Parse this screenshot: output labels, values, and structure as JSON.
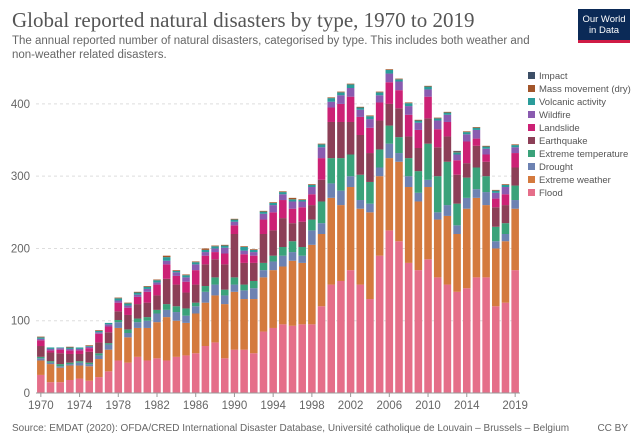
{
  "header": {
    "title": "Global reported natural disasters by type, 1970 to 2019",
    "subtitle": "The annual reported number of natural disasters, categorised by type. This includes both weather and non-weather related disasters."
  },
  "logo": {
    "line1": "Our World",
    "line2": "in Data"
  },
  "footer": {
    "source": "Source: EMDAT (2020): OFDA/CRED International Disaster Database, Université catholique de Louvain – Brussels – Belgium",
    "license": "CC BY"
  },
  "chart_data": {
    "type": "bar",
    "stacked": true,
    "title": "Global reported natural disasters by type, 1970 to 2019",
    "xlabel": "",
    "ylabel": "",
    "ylim": [
      0,
      440
    ],
    "yticks": [
      0,
      100,
      200,
      300,
      400
    ],
    "xticks": [
      1970,
      1974,
      1978,
      1982,
      1986,
      1990,
      1994,
      1998,
      2002,
      2006,
      2010,
      2014,
      2019
    ],
    "grid": true,
    "legend_position": "right",
    "years": [
      1970,
      1971,
      1972,
      1973,
      1974,
      1975,
      1976,
      1977,
      1978,
      1979,
      1980,
      1981,
      1982,
      1983,
      1984,
      1985,
      1986,
      1987,
      1988,
      1989,
      1990,
      1991,
      1992,
      1993,
      1994,
      1995,
      1996,
      1997,
      1998,
      1999,
      2000,
      2001,
      2002,
      2003,
      2004,
      2005,
      2006,
      2007,
      2008,
      2009,
      2010,
      2011,
      2012,
      2013,
      2014,
      2015,
      2016,
      2017,
      2018,
      2019
    ],
    "series": [
      {
        "name": "Flood",
        "color": "#e56e89",
        "values": [
          25,
          15,
          15,
          18,
          20,
          17,
          22,
          30,
          45,
          42,
          50,
          45,
          48,
          45,
          50,
          52,
          55,
          65,
          70,
          48,
          60,
          60,
          55,
          85,
          90,
          95,
          93,
          95,
          95,
          120,
          150,
          155,
          170,
          150,
          130,
          190,
          225,
          210,
          180,
          170,
          185,
          160,
          150,
          140,
          145,
          160,
          160,
          120,
          125,
          170
        ]
      },
      {
        "name": "Extreme weather",
        "color": "#d47a3e",
        "values": [
          20,
          25,
          20,
          20,
          18,
          20,
          25,
          30,
          45,
          35,
          40,
          45,
          50,
          60,
          50,
          45,
          55,
          60,
          65,
          75,
          80,
          70,
          75,
          75,
          80,
          80,
          90,
          85,
          110,
          100,
          120,
          105,
          115,
          105,
          120,
          110,
          100,
          110,
          105,
          95,
          100,
          80,
          95,
          80,
          110,
          110,
          100,
          80,
          85,
          85
        ]
      },
      {
        "name": "Drought",
        "color": "#6d82b2",
        "values": [
          3,
          2,
          2,
          2,
          4,
          3,
          5,
          7,
          8,
          6,
          8,
          10,
          12,
          10,
          12,
          10,
          10,
          15,
          15,
          12,
          10,
          12,
          15,
          10,
          12,
          15,
          12,
          10,
          20,
          15,
          20,
          20,
          15,
          12,
          12,
          12,
          20,
          12,
          15,
          12,
          10,
          10,
          15,
          12,
          15,
          12,
          18,
          10,
          10,
          12
        ]
      },
      {
        "name": "Extreme temperature",
        "color": "#3aa27a",
        "values": [
          2,
          2,
          3,
          2,
          2,
          2,
          3,
          2,
          3,
          5,
          5,
          5,
          5,
          8,
          8,
          10,
          5,
          8,
          10,
          8,
          10,
          8,
          10,
          10,
          8,
          12,
          15,
          12,
          15,
          30,
          35,
          45,
          30,
          35,
          30,
          25,
          25,
          22,
          25,
          30,
          50,
          50,
          60,
          30,
          28,
          30,
          22,
          20,
          15,
          20
        ]
      },
      {
        "name": "Earthquake",
        "color": "#8c3f57",
        "values": [
          15,
          12,
          15,
          12,
          10,
          15,
          15,
          15,
          12,
          20,
          20,
          20,
          20,
          35,
          30,
          22,
          25,
          30,
          25,
          35,
          60,
          30,
          25,
          40,
          35,
          40,
          25,
          35,
          20,
          30,
          50,
          50,
          45,
          55,
          40,
          40,
          30,
          40,
          30,
          32,
          35,
          40,
          35,
          40,
          20,
          30,
          20,
          27,
          25,
          25
        ]
      },
      {
        "name": "Landslide",
        "color": "#cc2175",
        "values": [
          8,
          3,
          5,
          5,
          5,
          5,
          12,
          8,
          12,
          10,
          10,
          15,
          15,
          20,
          12,
          15,
          20,
          12,
          10,
          15,
          12,
          12,
          10,
          20,
          25,
          25,
          20,
          20,
          15,
          30,
          20,
          25,
          35,
          25,
          35,
          25,
          30,
          25,
          30,
          25,
          30,
          25,
          20,
          20,
          30,
          10,
          10,
          12,
          15,
          20
        ]
      },
      {
        "name": "Wildfire",
        "color": "#8a5bb0",
        "values": [
          2,
          2,
          2,
          2,
          2,
          2,
          2,
          3,
          3,
          3,
          3,
          4,
          3,
          5,
          5,
          6,
          8,
          5,
          5,
          8,
          5,
          5,
          5,
          8,
          10,
          8,
          10,
          8,
          10,
          15,
          8,
          12,
          12,
          10,
          12,
          10,
          12,
          12,
          12,
          10,
          10,
          12,
          10,
          8,
          10,
          12,
          8,
          8,
          10,
          8
        ]
      },
      {
        "name": "Volcanic activity",
        "color": "#2a9c9a",
        "values": [
          2,
          2,
          1,
          2,
          2,
          1,
          2,
          2,
          3,
          3,
          3,
          3,
          3,
          5,
          2,
          3,
          3,
          3,
          3,
          3,
          3,
          5,
          3,
          3,
          3,
          3,
          3,
          2,
          3,
          4,
          5,
          4,
          5,
          3,
          4,
          4,
          5,
          3,
          4,
          3,
          4,
          3,
          3,
          3,
          3,
          3,
          3,
          3,
          3,
          3
        ]
      },
      {
        "name": "Mass movement (dry)",
        "color": "#a2552a",
        "values": [
          1,
          0,
          0,
          1,
          0,
          1,
          1,
          0,
          1,
          1,
          1,
          1,
          1,
          2,
          1,
          1,
          1,
          2,
          1,
          1,
          1,
          1,
          1,
          1,
          1,
          1,
          2,
          1,
          1,
          1,
          1,
          1,
          1,
          1,
          1,
          1,
          1,
          1,
          1,
          1,
          1,
          1,
          1,
          1,
          1,
          1,
          1,
          1,
          1,
          1
        ]
      },
      {
        "name": "Impact",
        "color": "#3c4e66",
        "values": [
          0,
          0,
          0,
          0,
          0,
          0,
          0,
          0,
          0,
          0,
          0,
          0,
          0,
          0,
          0,
          0,
          0,
          0,
          0,
          0,
          0,
          0,
          0,
          0,
          0,
          0,
          0,
          0,
          0,
          0,
          0,
          0,
          0,
          0,
          0,
          0,
          0,
          0,
          0,
          0,
          0,
          0,
          0,
          1,
          0,
          0,
          0,
          0,
          0,
          0
        ]
      }
    ]
  }
}
